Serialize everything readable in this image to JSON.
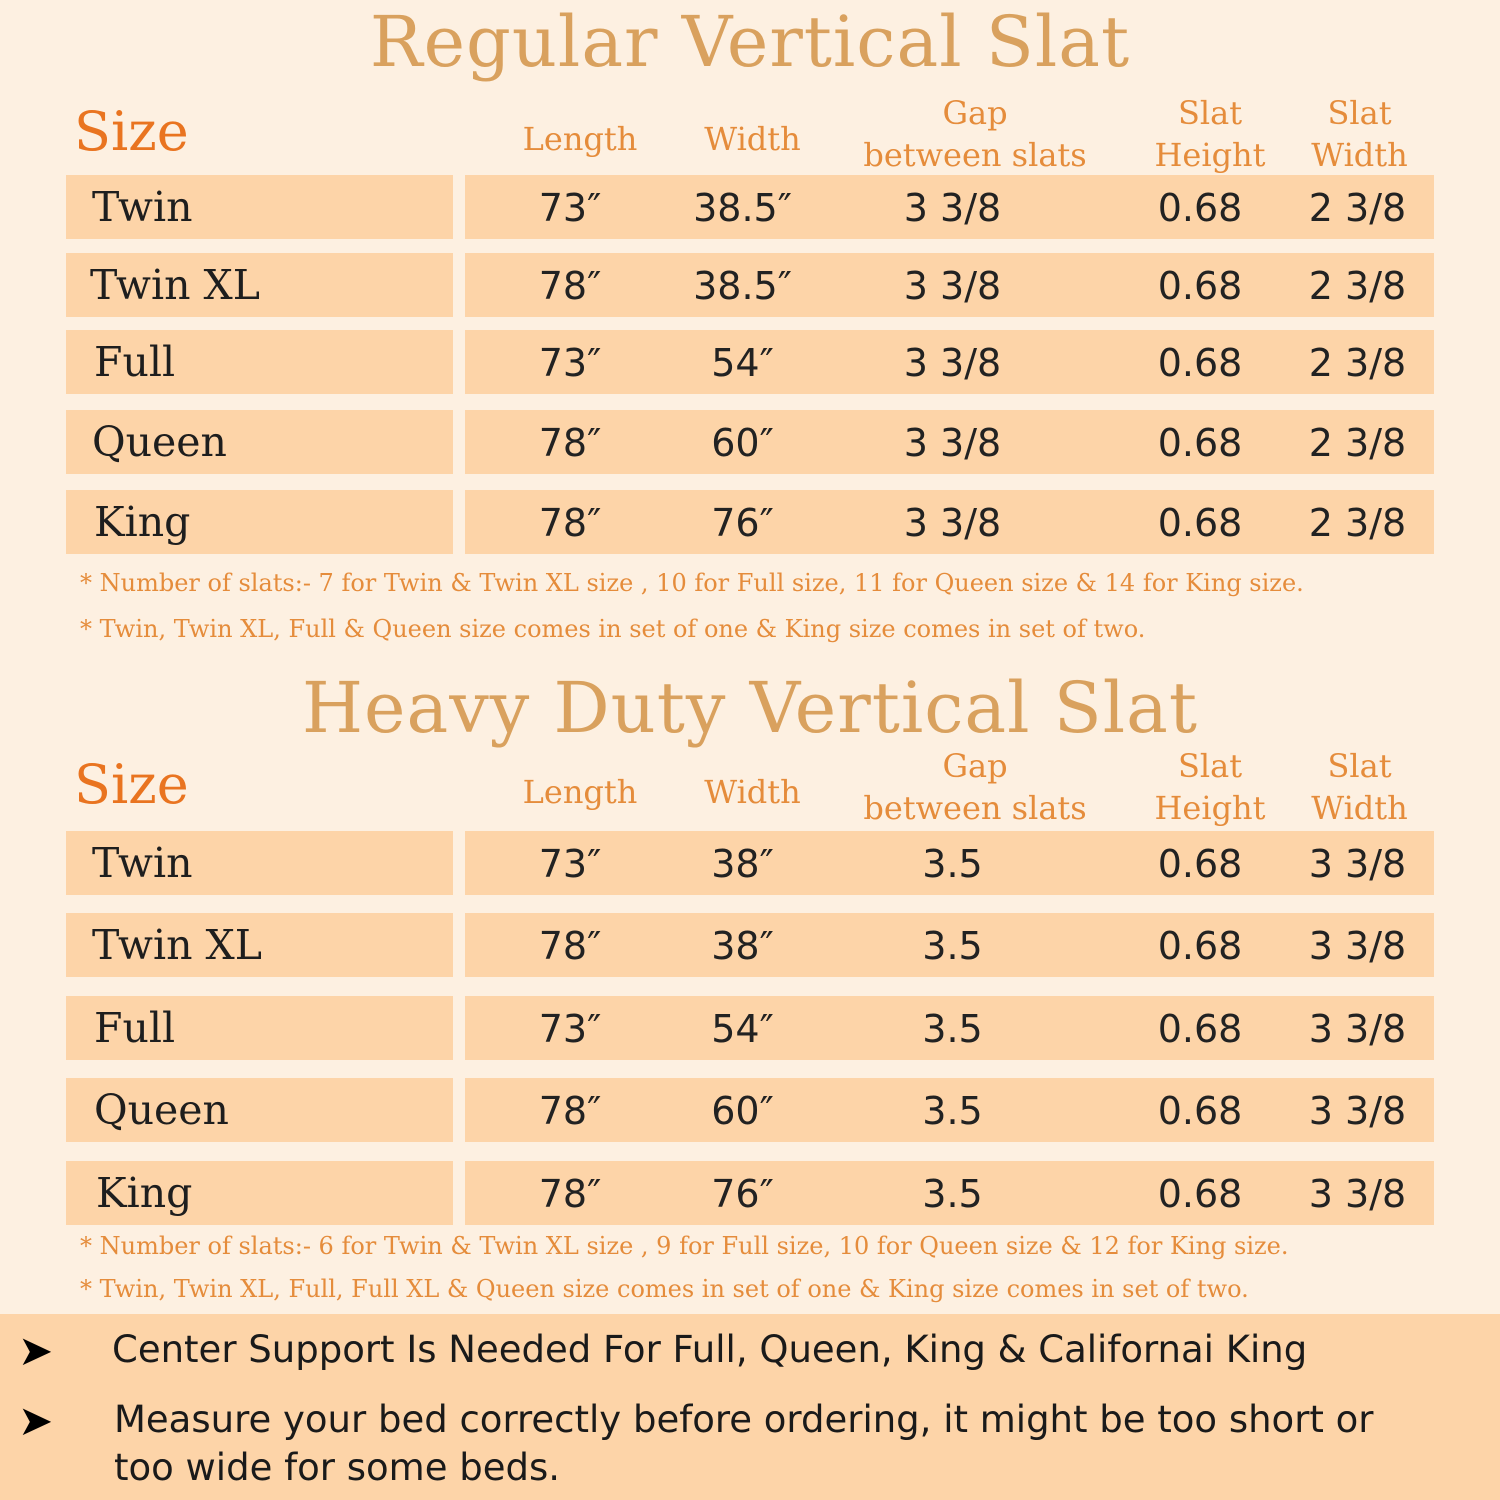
{
  "regular": {
    "title": "Regular Vertical Slat",
    "size_label": "Size",
    "headers": {
      "length": "Length",
      "width": "Width",
      "gap_line1": "Gap",
      "gap_line2": "between slats",
      "height_line1": "Slat",
      "height_line2": "Height",
      "slatwidth_line1": "Slat",
      "slatwidth_line2": "Width"
    },
    "rows": [
      {
        "size": "Twin",
        "length": "73″",
        "width": "38.5″",
        "gap": "3 3/8",
        "height": "0.68",
        "slat_width": "2 3/8"
      },
      {
        "size": "Twin XL",
        "length": "78″",
        "width": "38.5″",
        "gap": "3 3/8",
        "height": "0.68",
        "slat_width": "2 3/8"
      },
      {
        "size": "Full",
        "length": "73″",
        "width": "54″",
        "gap": "3 3/8",
        "height": "0.68",
        "slat_width": "2 3/8"
      },
      {
        "size": "Queen",
        "length": "78″",
        "width": "60″",
        "gap": "3 3/8",
        "height": "0.68",
        "slat_width": "2 3/8"
      },
      {
        "size": "King",
        "length": "78″",
        "width": "76″",
        "gap": "3 3/8",
        "height": "0.68",
        "slat_width": "2 3/8"
      }
    ],
    "notes": [
      "* Number of slats:- 7 for Twin & Twin XL size , 10 for Full size, 11 for Queen size & 14 for King size.",
      "* Twin, Twin XL, Full & Queen size comes in set of  one &  King size comes in set of two."
    ]
  },
  "heavy": {
    "title": "Heavy Duty Vertical Slat",
    "size_label": "Size",
    "headers": {
      "length": "Length",
      "width": "Width",
      "gap_line1": "Gap",
      "gap_line2": "between slats",
      "height_line1": "Slat",
      "height_line2": "Height",
      "slatwidth_line1": "Slat",
      "slatwidth_line2": "Width"
    },
    "rows": [
      {
        "size": "Twin",
        "length": "73″",
        "width": "38″",
        "gap": "3.5",
        "height": "0.68",
        "slat_width": "3 3/8"
      },
      {
        "size": "Twin XL",
        "length": "78″",
        "width": "38″",
        "gap": "3.5",
        "height": "0.68",
        "slat_width": "3 3/8"
      },
      {
        "size": "Full",
        "length": "73″",
        "width": "54″",
        "gap": "3.5",
        "height": "0.68",
        "slat_width": "3 3/8"
      },
      {
        "size": "Queen",
        "length": "78″",
        "width": "60″",
        "gap": "3.5",
        "height": "0.68",
        "slat_width": "3 3/8"
      },
      {
        "size": "King",
        "length": "78″",
        "width": "76″",
        "gap": "3.5",
        "height": "0.68",
        "slat_width": "3 3/8"
      }
    ],
    "notes": [
      "* Number of slats:- 6 for Twin & Twin XL size , 9 for Full size, 10 for Queen size & 12 for King size.",
      "* Twin, Twin XL, Full, Full XL & Queen size comes in set of  one &  King size comes in set of  two."
    ]
  },
  "bullets": {
    "arrow": "➤",
    "items": [
      {
        "line1": "Center Support Is Needed For Full, Queen, King & Californai King",
        "line2": ""
      },
      {
        "line1": "Measure your bed correctly before ordering, it might be too short or",
        "line2": "too wide for some beds."
      }
    ]
  }
}
